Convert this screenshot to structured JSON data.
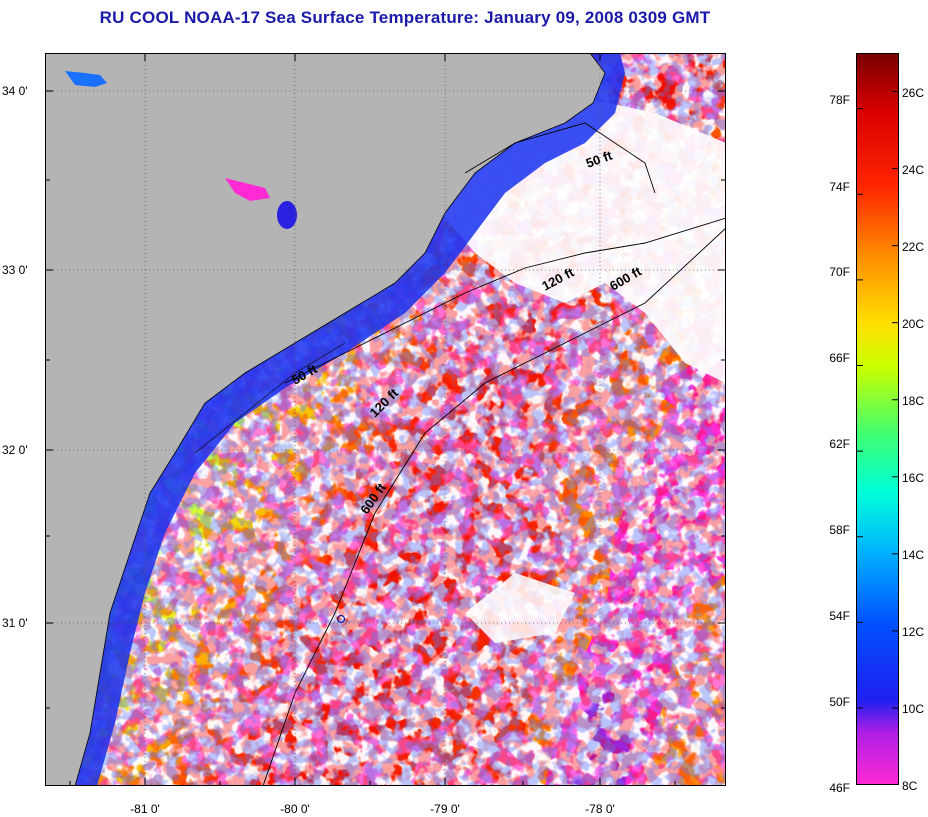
{
  "title": "RU COOL  NOAA-17  Sea Surface Temperature:  January 09, 2008 0309 GMT",
  "map": {
    "latitude_labels": [
      "34 0'",
      "33 0'",
      "32 0'",
      "31 0'"
    ],
    "longitude_labels": [
      "-81 0'",
      "-80 0'",
      "-79 0'",
      "-78 0'"
    ],
    "latitudes": [
      34,
      33,
      32,
      31
    ],
    "longitudes": [
      -81,
      -80,
      -79,
      -78
    ],
    "lat_range": [
      30.15,
      34.2
    ],
    "lon_range": [
      -81.6,
      -77.3
    ],
    "isobath_labels": [
      {
        "text": "50 ft",
        "isobath": "50 ft"
      },
      {
        "text": "120 ft",
        "isobath": "120 ft"
      },
      {
        "text": "600 ft",
        "isobath": "600 ft"
      },
      {
        "text": "50 ft",
        "isobath": "50 ft"
      },
      {
        "text": "120 ft",
        "isobath": "120 ft"
      },
      {
        "text": "600 ft",
        "isobath": "600 ft"
      }
    ],
    "colors": {
      "land": "#b4b4b4",
      "cloud": "#ffffff",
      "coastline": "#000000",
      "title": "#1a1aa8"
    }
  },
  "colorbar": {
    "fahrenheit_labels": [
      "78F",
      "74F",
      "70F",
      "66F",
      "62F",
      "58F",
      "54F",
      "50F",
      "46F"
    ],
    "celsius_labels": [
      "26C",
      "24C",
      "22C",
      "20C",
      "18C",
      "16C",
      "14C",
      "12C",
      "10C",
      "8C"
    ],
    "fahrenheit_values": [
      78,
      74,
      70,
      66,
      62,
      58,
      54,
      50,
      46
    ],
    "celsius_values": [
      26,
      24,
      22,
      20,
      18,
      16,
      14,
      12,
      10,
      8
    ],
    "range_c": [
      8,
      27
    ],
    "gradient_stops": [
      "#ff2ad4",
      "#b01ee6",
      "#2020f0",
      "#0050ff",
      "#00b4ff",
      "#00ffd8",
      "#40ff70",
      "#c8ff00",
      "#ffe000",
      "#ff9000",
      "#ff2400",
      "#d80000",
      "#7a0000"
    ]
  }
}
